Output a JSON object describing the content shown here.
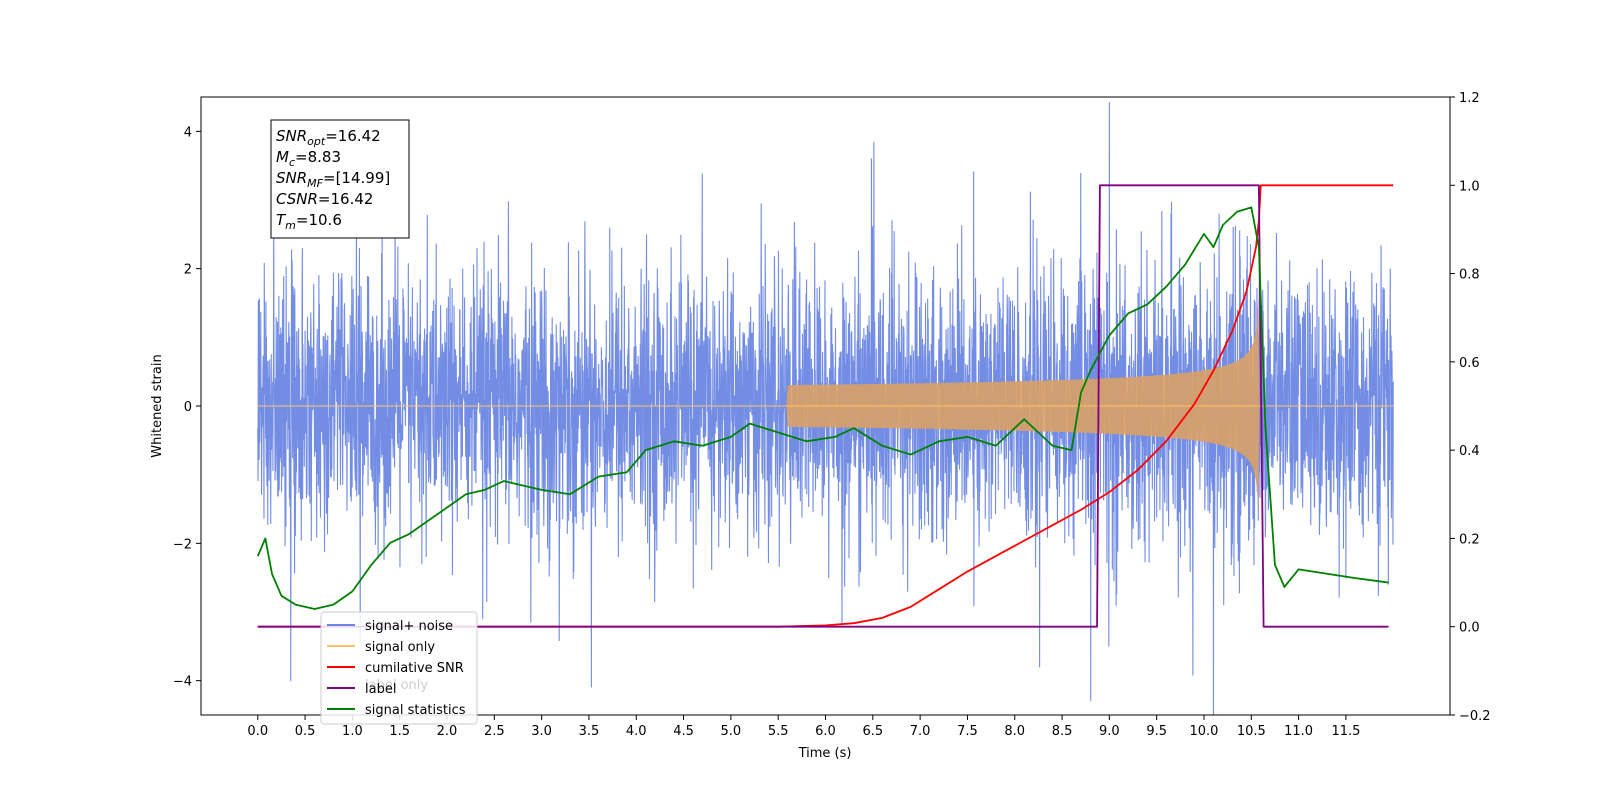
{
  "chart_data": {
    "type": "line",
    "xlabel": "Time (s)",
    "ylabel_left": "Whitened strain",
    "ylabel_right": "",
    "xlim": [
      -0.6,
      12.6
    ],
    "ylim_left": [
      -4.5,
      4.5
    ],
    "ylim_right": [
      -0.2,
      1.2
    ],
    "x_ticks": [
      0.0,
      0.5,
      1.0,
      1.5,
      2.0,
      2.5,
      3.0,
      3.5,
      4.0,
      4.5,
      5.0,
      5.5,
      6.0,
      6.5,
      7.0,
      7.5,
      8.0,
      8.5,
      9.0,
      9.5,
      10.0,
      10.5,
      11.0,
      11.5
    ],
    "x_tick_labels": [
      "0.0",
      "0.5",
      "1.0",
      "1.5",
      "2.0",
      "2.5",
      "3.0",
      "3.5",
      "4.0",
      "4.5",
      "5.0",
      "5.5",
      "6.0",
      "6.5",
      "7.0",
      "7.5",
      "8.0",
      "8.5",
      "9.0",
      "9.5",
      "10.0",
      "10.5",
      "11.0",
      "11.5"
    ],
    "y_left_ticks": [
      4,
      2,
      0,
      -2,
      -4
    ],
    "y_left_tick_labels": [
      "4",
      "2",
      "0",
      "−2",
      "−4"
    ],
    "y_right_ticks": [
      1.2,
      1.0,
      0.8,
      0.6,
      0.4,
      0.2,
      0.0,
      -0.2
    ],
    "y_right_tick_labels": [
      "1.2",
      "1.0",
      "0.8",
      "0.6",
      "0.4",
      "0.2",
      "0.0",
      "−0.2"
    ],
    "grid": false,
    "legend_position": "bottom-left",
    "legend": [
      {
        "label": "signal+ noise",
        "color": "#6b87e3"
      },
      {
        "label": "signal only",
        "color": "#ffc266"
      },
      {
        "label": "cumilative SNR",
        "color": "#ff0000"
      },
      {
        "label": "label",
        "color": "#800080"
      },
      {
        "label": "signal statistics",
        "color": "#008000"
      }
    ],
    "hidden_legend_text": "label only",
    "annotation": {
      "lines": [
        {
          "main": "SNR",
          "sub": "opt",
          "value": "=16.42"
        },
        {
          "main": "M",
          "sub": "c",
          "value": "=8.83"
        },
        {
          "main": "SNR",
          "sub": "MF",
          "value": "=[14.99]"
        },
        {
          "main": "CSNR",
          "sub": "",
          "value": "=16.42"
        },
        {
          "main": "T",
          "sub": "m",
          "value": "=10.6"
        }
      ]
    },
    "series": [
      {
        "name": "signal+ noise",
        "axis": "left",
        "color": "#6b87e3",
        "description": "dense noisy trace, approx. amplitude ±2.5 with spikes to 4.1 / -4.1",
        "x_range": [
          0.0,
          12.0
        ]
      },
      {
        "name": "signal only",
        "axis": "left",
        "color": "#d9a066",
        "chirp": {
          "start": 5.6,
          "merger": 10.58,
          "peak_amplitude": 2.2
        }
      },
      {
        "name": "cumilative SNR",
        "axis": "right",
        "color": "#ff0000",
        "x": [
          0.0,
          5.5,
          6.0,
          6.3,
          6.6,
          6.9,
          7.2,
          7.5,
          7.8,
          8.1,
          8.4,
          8.7,
          9.0,
          9.3,
          9.6,
          9.9,
          10.1,
          10.3,
          10.45,
          10.55,
          10.58,
          10.6,
          12.0
        ],
        "values": [
          0.0,
          0.0,
          0.003,
          0.008,
          0.02,
          0.045,
          0.085,
          0.125,
          0.16,
          0.195,
          0.23,
          0.265,
          0.305,
          0.355,
          0.42,
          0.505,
          0.58,
          0.67,
          0.76,
          0.86,
          0.92,
          1.0,
          1.0
        ]
      },
      {
        "name": "label",
        "axis": "right",
        "color": "#800080",
        "x": [
          0.0,
          8.87,
          8.9,
          10.58,
          10.63,
          11.95
        ],
        "values": [
          0.0,
          0.0,
          1.0,
          1.0,
          0.0,
          0.0
        ]
      },
      {
        "name": "signal statistics",
        "axis": "right",
        "color": "#008000",
        "x": [
          0.0,
          0.08,
          0.15,
          0.25,
          0.4,
          0.6,
          0.8,
          1.0,
          1.2,
          1.4,
          1.6,
          1.8,
          2.0,
          2.2,
          2.4,
          2.6,
          2.8,
          3.0,
          3.3,
          3.6,
          3.9,
          4.1,
          4.4,
          4.7,
          5.0,
          5.2,
          5.5,
          5.8,
          6.1,
          6.3,
          6.6,
          6.9,
          7.2,
          7.5,
          7.8,
          8.1,
          8.4,
          8.6,
          8.7,
          8.8,
          8.9,
          9.0,
          9.2,
          9.4,
          9.6,
          9.8,
          10.0,
          10.1,
          10.2,
          10.35,
          10.5,
          10.58,
          10.65,
          10.75,
          10.85,
          11.0,
          11.3,
          11.6,
          11.95
        ],
        "values": [
          0.16,
          0.2,
          0.12,
          0.07,
          0.05,
          0.04,
          0.05,
          0.08,
          0.14,
          0.19,
          0.21,
          0.24,
          0.27,
          0.3,
          0.31,
          0.33,
          0.32,
          0.31,
          0.3,
          0.34,
          0.35,
          0.4,
          0.42,
          0.41,
          0.43,
          0.46,
          0.44,
          0.42,
          0.43,
          0.45,
          0.41,
          0.39,
          0.42,
          0.43,
          0.41,
          0.47,
          0.41,
          0.4,
          0.53,
          0.58,
          0.62,
          0.66,
          0.71,
          0.73,
          0.77,
          0.82,
          0.89,
          0.86,
          0.91,
          0.94,
          0.95,
          0.86,
          0.45,
          0.14,
          0.09,
          0.13,
          0.12,
          0.11,
          0.1
        ]
      }
    ]
  }
}
